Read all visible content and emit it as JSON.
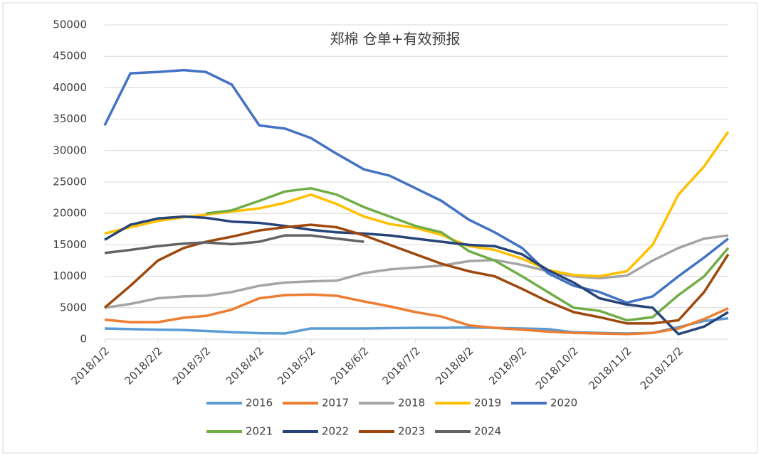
{
  "chart_data": {
    "type": "line",
    "title": "郑棉 仓单+有效预报",
    "x": [
      "2018/1/2",
      "2018/1/17",
      "2018/2/2",
      "2018/2/17",
      "2018/3/2",
      "2018/3/17",
      "2018/4/2",
      "2018/4/17",
      "2018/5/2",
      "2018/5/17",
      "2018/6/2",
      "2018/6/17",
      "2018/7/2",
      "2018/7/17",
      "2018/8/2",
      "2018/8/17",
      "2018/9/2",
      "2018/9/17",
      "2018/10/2",
      "2018/10/17",
      "2018/11/2",
      "2018/11/17",
      "2018/12/2",
      "2018/12/17",
      "2018/12/31"
    ],
    "xlim": [
      "2018/1/2",
      "2018/12/31"
    ],
    "xticks": [
      "2018/1/2",
      "2018/2/2",
      "2018/3/2",
      "2018/4/2",
      "2018/5/2",
      "2018/6/2",
      "2018/7/2",
      "2018/8/2",
      "2018/9/2",
      "2018/10/2",
      "2018/11/2",
      "2018/12/2"
    ],
    "ylim": [
      0,
      50000
    ],
    "yticks": [
      0,
      5000,
      10000,
      15000,
      20000,
      25000,
      30000,
      35000,
      40000,
      45000,
      50000
    ],
    "grid": true,
    "series": [
      {
        "name": "2016",
        "color": "#5b9bd5",
        "values": [
          1700,
          1600,
          1500,
          1450,
          1300,
          1100,
          950,
          900,
          1700,
          1700,
          1700,
          1750,
          1800,
          1800,
          1850,
          1800,
          1700,
          1600,
          1100,
          1000,
          900,
          1000,
          1900,
          2900,
          3300
        ]
      },
      {
        "name": "2017",
        "color": "#ed7d31",
        "values": [
          3100,
          2700,
          2700,
          3400,
          3700,
          4700,
          6500,
          7000,
          7100,
          6900,
          6000,
          5200,
          4300,
          3600,
          2200,
          1800,
          1500,
          1200,
          1000,
          900,
          800,
          1000,
          1700,
          3200,
          4900
        ]
      },
      {
        "name": "2018",
        "color": "#a5a5a5",
        "values": [
          5000,
          5600,
          6500,
          6800,
          6900,
          7500,
          8500,
          9000,
          9200,
          9300,
          10500,
          11100,
          11400,
          11700,
          12400,
          12600,
          11800,
          10800,
          10000,
          9700,
          10100,
          12500,
          14500,
          16000,
          16500
        ]
      },
      {
        "name": "2019",
        "color": "#ffc000",
        "values": [
          16800,
          17800,
          18800,
          19400,
          19800,
          20300,
          20800,
          21700,
          23000,
          21500,
          19500,
          18300,
          17700,
          16600,
          14800,
          14200,
          12800,
          11000,
          10200,
          10000,
          10800,
          15000,
          23000,
          27500,
          33000
        ]
      },
      {
        "name": "2020",
        "color": "#4472c4",
        "values": [
          34000,
          42300,
          42500,
          42800,
          42500,
          40500,
          34000,
          33500,
          32000,
          29500,
          27000,
          26000,
          24000,
          22000,
          19000,
          17000,
          14500,
          10500,
          8500,
          7500,
          5800,
          6800,
          10000,
          13000,
          16000
        ]
      },
      {
        "name": "2021",
        "color": "#70ad47",
        "values": [
          null,
          null,
          null,
          null,
          20000,
          20500,
          22000,
          23500,
          24000,
          23000,
          21000,
          19500,
          18000,
          17000,
          14000,
          12500,
          10000,
          7500,
          5000,
          4500,
          3000,
          3500,
          7000,
          10000,
          14500
        ]
      },
      {
        "name": "2022",
        "color": "#264478",
        "values": [
          15800,
          18200,
          19200,
          19500,
          19300,
          18700,
          18500,
          18000,
          17400,
          17000,
          16800,
          16500,
          16000,
          15500,
          15000,
          14800,
          13500,
          11000,
          9000,
          6500,
          5500,
          5000,
          800,
          2000,
          4300
        ]
      },
      {
        "name": "2023",
        "color": "#9e480e",
        "values": [
          5000,
          8500,
          12500,
          14500,
          15500,
          16300,
          17300,
          17800,
          18200,
          17800,
          16500,
          15000,
          13500,
          12000,
          10800,
          10000,
          8000,
          6000,
          4300,
          3500,
          2500,
          2500,
          3000,
          7500,
          13500
        ]
      },
      {
        "name": "2024",
        "color": "#636363",
        "values": [
          13700,
          14200,
          14800,
          15200,
          15400,
          15100,
          15500,
          16500,
          16500,
          16000,
          15500,
          null,
          null,
          null,
          null,
          null,
          null,
          null,
          null,
          null,
          null,
          null,
          null,
          null,
          null
        ]
      }
    ]
  }
}
